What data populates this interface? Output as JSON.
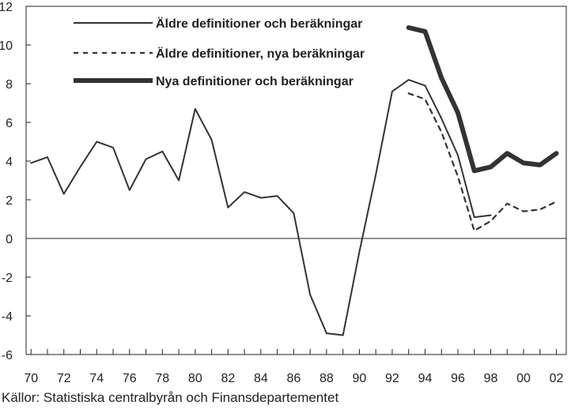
{
  "chart_data": {
    "type": "line",
    "title": "",
    "xlabel": "",
    "ylabel": "",
    "xlim": [
      1969.7,
      2002.6
    ],
    "ylim": [
      -6,
      12
    ],
    "yticks": [
      -6,
      -4,
      -2,
      0,
      2,
      4,
      6,
      8,
      10,
      12
    ],
    "ytick_labels": [
      "-6",
      "-4",
      "-2",
      "0",
      "2",
      "4",
      "6",
      "8",
      "10",
      "12"
    ],
    "xticks": [
      1970,
      1972,
      1974,
      1976,
      1978,
      1980,
      1982,
      1984,
      1986,
      1988,
      1990,
      1992,
      1994,
      1996,
      1998,
      2000,
      2002
    ],
    "xtick_labels": [
      "70",
      "72",
      "74",
      "76",
      "78",
      "80",
      "82",
      "84",
      "86",
      "88",
      "90",
      "92",
      "94",
      "96",
      "98",
      "00",
      "02"
    ],
    "grid": false,
    "zero_line": true,
    "legend_position": "top-left",
    "series": [
      {
        "name": "Äldre definitioner och beräkningar",
        "style": "solid-thin",
        "color": "#333333",
        "points": [
          [
            1970,
            3.9
          ],
          [
            1971,
            4.2
          ],
          [
            1972,
            2.3
          ],
          [
            1973,
            3.7
          ],
          [
            1974,
            5.0
          ],
          [
            1975,
            4.7
          ],
          [
            1976,
            2.5
          ],
          [
            1977,
            4.1
          ],
          [
            1978,
            4.5
          ],
          [
            1979,
            3.0
          ],
          [
            1980,
            6.7
          ],
          [
            1981,
            5.1
          ],
          [
            1982,
            1.6
          ],
          [
            1983,
            2.4
          ],
          [
            1984,
            2.1
          ],
          [
            1985,
            2.2
          ],
          [
            1986,
            1.3
          ],
          [
            1987,
            -2.9
          ],
          [
            1988,
            -4.9
          ],
          [
            1989,
            -5.0
          ],
          [
            1990,
            -0.7
          ],
          [
            1991,
            3.3
          ],
          [
            1992,
            7.6
          ],
          [
            1993,
            8.2
          ],
          [
            1994,
            7.9
          ],
          [
            1995,
            6.2
          ],
          [
            1996,
            4.3
          ],
          [
            1997,
            1.1
          ],
          [
            1998,
            1.2
          ]
        ]
      },
      {
        "name": "Äldre definitioner, nya beräkningar",
        "style": "dashed",
        "color": "#333333",
        "points": [
          [
            1993,
            7.5
          ],
          [
            1994,
            7.2
          ],
          [
            1995,
            5.5
          ],
          [
            1996,
            3.2
          ],
          [
            1997,
            0.4
          ],
          [
            1998,
            0.9
          ],
          [
            1999,
            1.8
          ],
          [
            2000,
            1.4
          ],
          [
            2001,
            1.5
          ],
          [
            2002,
            1.9
          ]
        ]
      },
      {
        "name": "Nya definitioner och beräkningar",
        "style": "solid-thick",
        "color": "#333333",
        "points": [
          [
            1993,
            10.9
          ],
          [
            1994,
            10.7
          ],
          [
            1995,
            8.3
          ],
          [
            1996,
            6.5
          ],
          [
            1997,
            3.5
          ],
          [
            1998,
            3.7
          ],
          [
            1999,
            4.4
          ],
          [
            2000,
            3.9
          ],
          [
            2001,
            3.8
          ],
          [
            2002,
            4.4
          ]
        ]
      }
    ]
  },
  "source_note": "Källor: Statistiska centralbyrån och Finansdepartementet"
}
